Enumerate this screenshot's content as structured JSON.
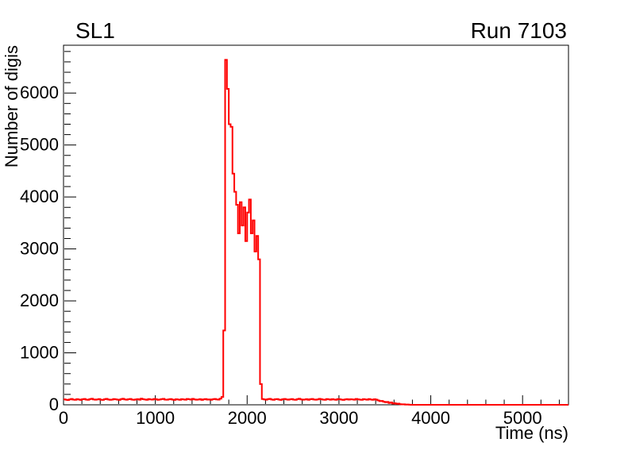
{
  "chart_data": {
    "type": "line",
    "style": "step-histogram",
    "title_left": "SL1",
    "title_right": "Run 7103",
    "xlabel": "Time (ns)",
    "ylabel": "Number of digis",
    "xlim": [
      0,
      5500
    ],
    "ylim": [
      0,
      6920
    ],
    "x_major_ticks": [
      0,
      1000,
      2000,
      3000,
      4000,
      5000
    ],
    "y_major_ticks": [
      0,
      1000,
      2000,
      3000,
      4000,
      5000,
      6000
    ],
    "x_minor_step": 200,
    "y_minor_step": 200,
    "grid": false,
    "legend": "none",
    "line_color": "#ff0000",
    "line_width": 2,
    "frame_color": "#000000",
    "background_color": "#ffffff",
    "bin_width_ns": 20,
    "peak_value": 6640,
    "peak_time_ns": 1760,
    "bins": [
      105,
      98,
      92,
      104,
      112,
      99,
      95,
      108,
      101,
      94,
      106,
      113,
      100,
      96,
      109,
      117,
      104,
      97,
      103,
      110,
      98,
      93,
      107,
      115,
      102,
      96,
      100,
      111,
      105,
      99,
      94,
      108,
      116,
      103,
      97,
      106,
      112,
      100,
      95,
      104,
      109,
      98,
      118,
      107,
      101,
      96,
      110,
      103,
      99,
      113,
      106,
      95,
      102,
      108,
      114,
      100,
      97,
      105,
      111,
      99,
      93,
      107,
      102,
      96,
      109,
      104,
      98,
      112,
      106,
      100,
      115,
      103,
      97,
      101,
      108,
      94,
      105,
      110,
      99,
      103,
      96,
      107,
      113,
      104,
      100,
      118,
      150,
      1430,
      6640,
      6080,
      5400,
      5350,
      4450,
      4100,
      3850,
      3300,
      3900,
      3450,
      3800,
      3150,
      3700,
      3950,
      3300,
      3550,
      2950,
      3250,
      2800,
      400,
      110,
      104,
      98,
      108,
      115,
      102,
      96,
      106,
      111,
      99,
      94,
      107,
      113,
      103,
      97,
      105,
      110,
      100,
      95,
      108,
      116,
      104,
      98,
      102,
      109,
      96,
      106,
      112,
      101,
      97,
      103,
      114,
      107,
      99,
      95,
      110,
      105,
      98,
      108,
      102,
      96,
      111,
      106,
      100,
      93,
      104,
      109,
      99,
      107,
      103,
      97,
      112,
      105,
      100,
      96,
      108,
      104,
      98,
      110,
      101,
      95,
      106,
      100,
      85,
      70,
      75,
      60,
      50,
      55,
      35,
      45,
      25,
      30,
      18,
      22,
      12,
      8,
      10,
      4,
      6,
      2,
      0,
      0,
      0,
      0,
      0,
      0,
      0,
      0,
      0,
      0,
      0,
      0,
      0,
      0,
      0,
      0,
      0,
      0,
      0,
      0,
      0,
      0,
      0,
      0,
      0,
      0,
      0,
      0,
      0,
      0,
      0,
      0,
      0,
      0,
      0,
      0,
      0,
      0,
      0,
      0,
      0,
      0,
      0,
      0,
      0,
      0,
      0,
      0,
      0,
      0,
      0,
      0,
      0,
      0,
      0,
      0,
      0,
      0,
      0,
      0,
      0,
      0,
      0,
      0,
      0,
      0,
      0,
      0,
      0,
      0,
      0,
      0,
      0,
      0,
      0,
      0,
      0,
      0,
      0,
      0,
      0,
      0,
      0,
      0,
      0,
      0
    ]
  }
}
